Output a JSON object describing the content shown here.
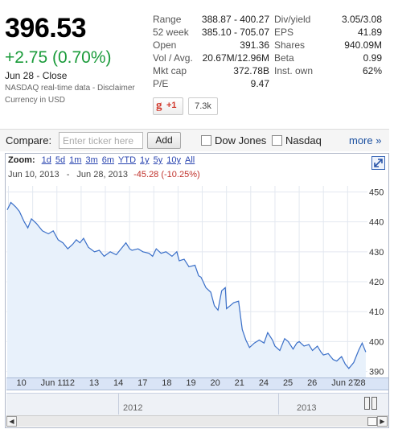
{
  "quote": {
    "price": "396.53",
    "change": "+2.75 (0.70%)",
    "close_label": "Jun 28 - Close",
    "realtime_text": "NASDAQ real-time data - ",
    "disclaimer_link": "Disclaimer",
    "currency": "Currency in USD",
    "change_color": "#1a9b3a"
  },
  "stats_left": [
    {
      "label": "Range",
      "value": "388.87 - 400.27"
    },
    {
      "label": "52 week",
      "value": "385.10 - 705.07"
    },
    {
      "label": "Open",
      "value": "391.36"
    },
    {
      "label": "Vol / Avg.",
      "value": "20.67M/12.96M"
    },
    {
      "label": "Mkt cap",
      "value": "372.78B"
    },
    {
      "label": "P/E",
      "value": "9.47"
    }
  ],
  "stats_right": [
    {
      "label": "Div/yield",
      "value": "3.05/3.08"
    },
    {
      "label": "EPS",
      "value": "41.89"
    },
    {
      "label": "Shares",
      "value": "940.09M"
    },
    {
      "label": "Beta",
      "value": "0.99"
    },
    {
      "label": "Inst. own",
      "value": "62%"
    }
  ],
  "social": {
    "gplus_label": "+1",
    "gplus_icon": "g-plus-icon",
    "count": "7.3k"
  },
  "compare": {
    "label": "Compare:",
    "placeholder": "Enter ticker here",
    "add_label": "Add",
    "option1": "Dow Jones",
    "option2": "Nasdaq",
    "more": "more »"
  },
  "chart": {
    "zoom_label": "Zoom:",
    "zoom_options": [
      "1d",
      "5d",
      "1m",
      "3m",
      "6m",
      "YTD",
      "1y",
      "5y",
      "10y",
      "All"
    ],
    "range_from": "Jun 10, 2013",
    "range_sep": "-",
    "range_to": "Jun 28, 2013",
    "range_change": "-45.28 (-10.25%)",
    "nav_years": [
      "2012",
      "2013"
    ],
    "line_color": "#3a6fc8",
    "fill_color": "#e8f1fb",
    "neg_color": "#c0312b"
  },
  "chart_data": {
    "type": "area",
    "ylim": [
      388,
      452
    ],
    "yticks": [
      390,
      400,
      410,
      420,
      430,
      440,
      450
    ],
    "categories": [
      "10",
      "Jun 11",
      "12",
      "13",
      "14",
      "17",
      "18",
      "19",
      "20",
      "21",
      "24",
      "25",
      "26",
      "Jun 27",
      "28"
    ],
    "series": [
      {
        "values": [
          [
            0,
            444
          ],
          [
            0.15,
            446.5
          ],
          [
            0.35,
            445
          ],
          [
            0.5,
            443.5
          ],
          [
            0.7,
            440
          ],
          [
            0.85,
            438
          ],
          [
            1.0,
            441
          ],
          [
            1.2,
            439.5
          ],
          [
            1.45,
            437
          ],
          [
            1.7,
            436
          ],
          [
            1.9,
            437
          ],
          [
            2.1,
            434
          ],
          [
            2.3,
            433
          ],
          [
            2.5,
            431
          ],
          [
            2.7,
            432.5
          ],
          [
            2.85,
            434
          ],
          [
            3.0,
            433
          ],
          [
            3.15,
            434.5
          ],
          [
            3.35,
            431.5
          ],
          [
            3.6,
            430
          ],
          [
            3.8,
            430.5
          ],
          [
            4.0,
            428.5
          ],
          [
            4.25,
            430
          ],
          [
            4.5,
            429
          ],
          [
            4.75,
            431.5
          ],
          [
            4.9,
            433
          ],
          [
            5.05,
            431
          ],
          [
            5.15,
            430.5
          ],
          [
            5.4,
            431
          ],
          [
            5.6,
            430
          ],
          [
            5.85,
            429.5
          ],
          [
            6.0,
            428.5
          ],
          [
            6.15,
            431
          ],
          [
            6.35,
            429.5
          ],
          [
            6.55,
            430
          ],
          [
            6.8,
            428.5
          ],
          [
            7.0,
            430
          ],
          [
            7.1,
            427
          ],
          [
            7.3,
            427.5
          ],
          [
            7.5,
            425
          ],
          [
            7.75,
            425.5
          ],
          [
            7.9,
            422
          ],
          [
            8.0,
            421.5
          ],
          [
            8.2,
            418
          ],
          [
            8.4,
            416.5
          ],
          [
            8.55,
            412
          ],
          [
            8.7,
            410.5
          ],
          [
            8.85,
            417
          ],
          [
            9.0,
            418
          ],
          [
            9.05,
            411
          ],
          [
            9.2,
            412
          ],
          [
            9.35,
            413
          ],
          [
            9.55,
            413.5
          ],
          [
            9.7,
            404
          ],
          [
            9.85,
            400.5
          ],
          [
            10.0,
            398
          ],
          [
            10.2,
            399.5
          ],
          [
            10.4,
            400.5
          ],
          [
            10.6,
            399.5
          ],
          [
            10.75,
            403
          ],
          [
            10.95,
            400.5
          ],
          [
            11.05,
            398.5
          ],
          [
            11.25,
            397
          ],
          [
            11.45,
            401
          ],
          [
            11.6,
            400
          ],
          [
            11.8,
            397.5
          ],
          [
            11.95,
            399.5
          ],
          [
            12.05,
            400
          ],
          [
            12.25,
            398.5
          ],
          [
            12.45,
            399
          ],
          [
            12.6,
            397
          ],
          [
            12.8,
            398.5
          ],
          [
            12.95,
            396.5
          ],
          [
            13.05,
            395.5
          ],
          [
            13.25,
            396
          ],
          [
            13.45,
            394
          ],
          [
            13.6,
            393.5
          ],
          [
            13.8,
            395
          ],
          [
            13.95,
            392.5
          ],
          [
            14.1,
            391
          ],
          [
            14.3,
            393
          ],
          [
            14.5,
            397
          ],
          [
            14.65,
            399.5
          ],
          [
            14.8,
            396.5
          ]
        ]
      }
    ]
  }
}
